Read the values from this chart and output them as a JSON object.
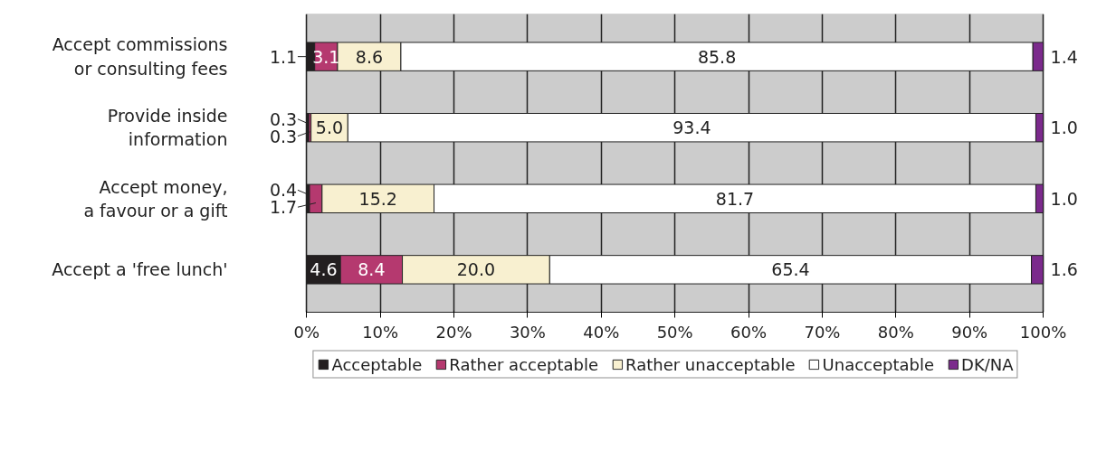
{
  "chart_data": {
    "type": "bar",
    "orientation": "horizontal",
    "stacked": true,
    "categories": [
      "Accept commissions\nor consulting fees",
      "Provide inside\ninformation",
      "Accept money,\na favour or a gift",
      "Accept a 'free lunch'"
    ],
    "series": [
      {
        "name": "Acceptable",
        "color": "#231f20",
        "values": [
          1.1,
          0.3,
          0.4,
          4.6
        ],
        "value_labels": [
          "1.1",
          "0.3",
          "0.4",
          "4.6"
        ]
      },
      {
        "name": "Rather acceptable",
        "color": "#b5396f",
        "values": [
          3.1,
          0.3,
          1.7,
          8.4
        ],
        "value_labels": [
          "3.1",
          "0.3",
          "1.7",
          "8.4"
        ]
      },
      {
        "name": "Rather unacceptable",
        "color": "#f8f0d0",
        "values": [
          8.6,
          5.0,
          15.2,
          20.0
        ],
        "value_labels": [
          "8.6",
          "5.0",
          "15.2",
          "20.0"
        ]
      },
      {
        "name": "Unacceptable",
        "color": "#ffffff",
        "values": [
          85.8,
          93.4,
          81.7,
          65.4
        ],
        "value_labels": [
          "85.8",
          "93.4",
          "81.7",
          "65.4"
        ]
      },
      {
        "name": "DK/NA",
        "color": "#7b2a8c",
        "values": [
          1.4,
          1.0,
          1.0,
          1.6
        ],
        "value_labels": [
          "1.4",
          "1.0",
          "1.0",
          "1.6"
        ]
      }
    ],
    "xlim": [
      0,
      100
    ],
    "xticks": [
      {
        "value": 0,
        "label": "0%"
      },
      {
        "value": 10,
        "label": "10%"
      },
      {
        "value": 20,
        "label": "20%"
      },
      {
        "value": 30,
        "label": "30%"
      },
      {
        "value": 40,
        "label": "40%"
      },
      {
        "value": 50,
        "label": "50%"
      },
      {
        "value": 60,
        "label": "60%"
      },
      {
        "value": 70,
        "label": "70%"
      },
      {
        "value": 80,
        "label": "80%"
      },
      {
        "value": 90,
        "label": "90%"
      },
      {
        "value": 100,
        "label": "100%"
      }
    ],
    "grid": "x",
    "legend": "bottom"
  }
}
